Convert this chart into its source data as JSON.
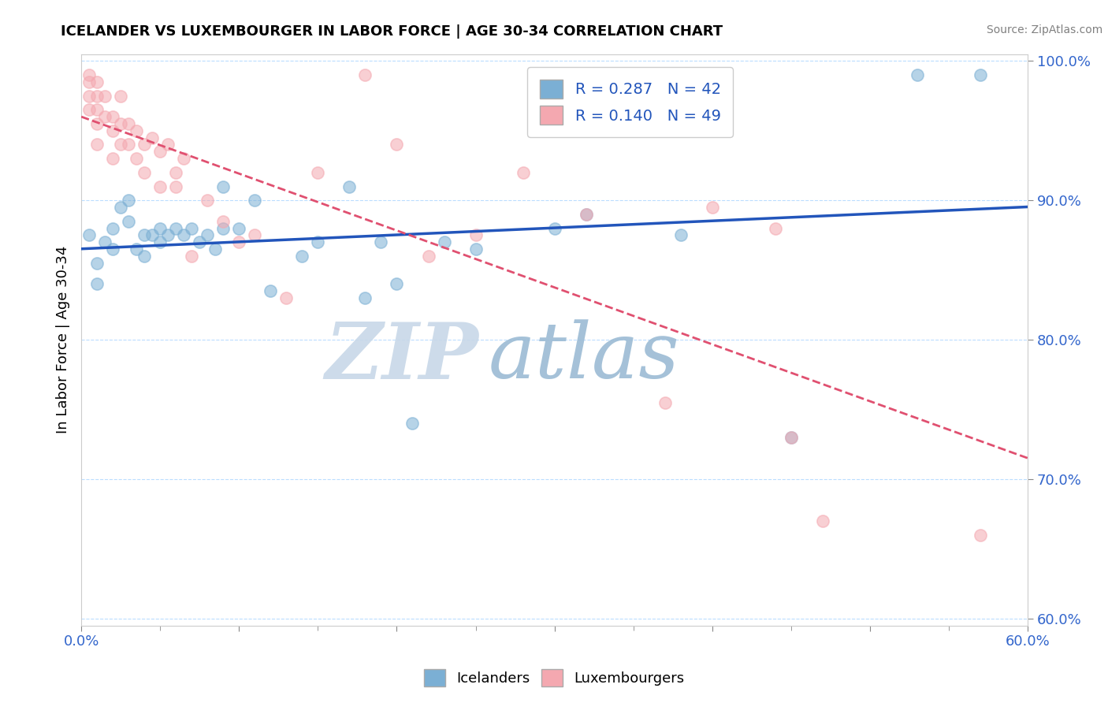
{
  "title": "ICELANDER VS LUXEMBOURGER IN LABOR FORCE | AGE 30-34 CORRELATION CHART",
  "source": "Source: ZipAtlas.com",
  "ylabel": "In Labor Force | Age 30-34",
  "xlim": [
    0.0,
    0.6
  ],
  "ylim": [
    0.595,
    1.005
  ],
  "xticks": [
    0.0,
    0.1,
    0.2,
    0.3,
    0.4,
    0.5,
    0.6
  ],
  "xticklabels": [
    "0.0%",
    "",
    "",
    "",
    "",
    "",
    "60.0%"
  ],
  "yticks": [
    0.6,
    0.7,
    0.8,
    0.9,
    1.0
  ],
  "yticklabels": [
    "60.0%",
    "70.0%",
    "80.0%",
    "90.0%",
    "100.0%"
  ],
  "r_blue": 0.287,
  "n_blue": 42,
  "r_pink": 0.14,
  "n_pink": 49,
  "blue_color": "#7BAFD4",
  "pink_color": "#F4A8B0",
  "trend_blue": "#2255BB",
  "trend_pink": "#E05070",
  "icelanders_x": [
    0.005,
    0.01,
    0.01,
    0.015,
    0.02,
    0.02,
    0.025,
    0.03,
    0.03,
    0.035,
    0.04,
    0.04,
    0.045,
    0.05,
    0.05,
    0.055,
    0.06,
    0.065,
    0.07,
    0.075,
    0.08,
    0.085,
    0.09,
    0.09,
    0.1,
    0.11,
    0.12,
    0.14,
    0.15,
    0.17,
    0.18,
    0.19,
    0.2,
    0.21,
    0.23,
    0.25,
    0.3,
    0.32,
    0.38,
    0.45,
    0.53,
    0.57
  ],
  "icelanders_y": [
    0.875,
    0.855,
    0.84,
    0.87,
    0.88,
    0.865,
    0.895,
    0.9,
    0.885,
    0.865,
    0.875,
    0.86,
    0.875,
    0.88,
    0.87,
    0.875,
    0.88,
    0.875,
    0.88,
    0.87,
    0.875,
    0.865,
    0.91,
    0.88,
    0.88,
    0.9,
    0.835,
    0.86,
    0.87,
    0.91,
    0.83,
    0.87,
    0.84,
    0.74,
    0.87,
    0.865,
    0.88,
    0.89,
    0.875,
    0.73,
    0.99,
    0.99
  ],
  "luxembourgers_x": [
    0.005,
    0.005,
    0.005,
    0.005,
    0.01,
    0.01,
    0.01,
    0.01,
    0.01,
    0.015,
    0.015,
    0.02,
    0.02,
    0.02,
    0.025,
    0.025,
    0.025,
    0.03,
    0.03,
    0.035,
    0.035,
    0.04,
    0.04,
    0.045,
    0.05,
    0.05,
    0.055,
    0.06,
    0.06,
    0.065,
    0.07,
    0.08,
    0.09,
    0.1,
    0.11,
    0.13,
    0.15,
    0.18,
    0.2,
    0.22,
    0.25,
    0.28,
    0.32,
    0.37,
    0.4,
    0.44,
    0.45,
    0.47,
    0.57
  ],
  "luxembourgers_y": [
    0.99,
    0.985,
    0.975,
    0.965,
    0.985,
    0.975,
    0.965,
    0.955,
    0.94,
    0.975,
    0.96,
    0.96,
    0.95,
    0.93,
    0.975,
    0.955,
    0.94,
    0.955,
    0.94,
    0.95,
    0.93,
    0.94,
    0.92,
    0.945,
    0.935,
    0.91,
    0.94,
    0.91,
    0.92,
    0.93,
    0.86,
    0.9,
    0.885,
    0.87,
    0.875,
    0.83,
    0.92,
    0.99,
    0.94,
    0.86,
    0.875,
    0.92,
    0.89,
    0.755,
    0.895,
    0.88,
    0.73,
    0.67,
    0.66
  ]
}
